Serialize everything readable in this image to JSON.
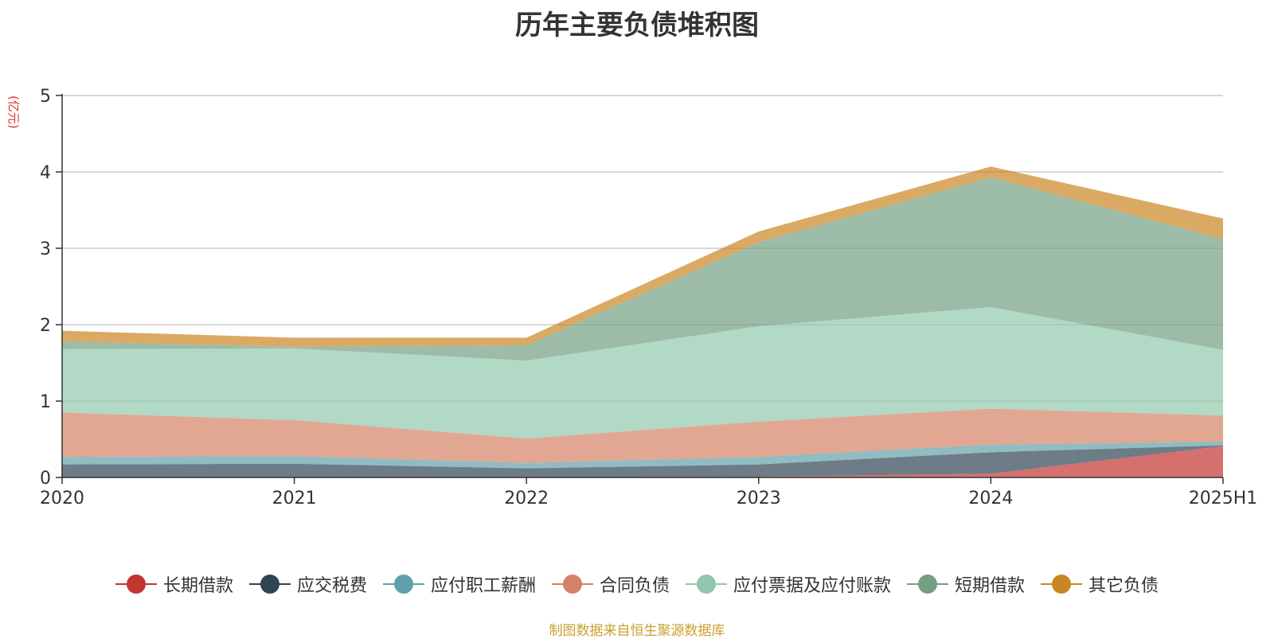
{
  "chart_data": {
    "type": "area",
    "stacked": true,
    "title": "历年主要负债堆积图",
    "ylabel": "(亿元)",
    "xlabel": "",
    "categories": [
      "2020",
      "2021",
      "2022",
      "2023",
      "2024",
      "2025H1"
    ],
    "ylim": [
      0,
      5
    ],
    "yticks": [
      0,
      1,
      2,
      3,
      4,
      5
    ],
    "grid": true,
    "legend_position": "bottom",
    "series": [
      {
        "name": "长期借款",
        "color": "#c23531",
        "values": [
          0,
          0,
          0,
          0.01,
          0.05,
          0.41
        ]
      },
      {
        "name": "应交税费",
        "color": "#2f4554",
        "values": [
          0.17,
          0.18,
          0.12,
          0.16,
          0.28,
          0.01
        ]
      },
      {
        "name": "应付职工薪酬",
        "color": "#61a0a8",
        "values": [
          0.1,
          0.1,
          0.07,
          0.1,
          0.1,
          0.05
        ]
      },
      {
        "name": "合同负债",
        "color": "#d48265",
        "values": [
          0.58,
          0.47,
          0.32,
          0.46,
          0.47,
          0.34
        ]
      },
      {
        "name": "应付票据及应付账款",
        "color": "#91c7ae",
        "values": [
          0.83,
          0.94,
          1.02,
          1.25,
          1.33,
          0.86
        ]
      },
      {
        "name": "短期借款",
        "color": "#749f83",
        "values": [
          0.1,
          0.02,
          0.2,
          1.1,
          1.7,
          1.45
        ]
      },
      {
        "name": "其它负债",
        "color": "#ca8622",
        "values": [
          0.14,
          0.12,
          0.1,
          0.14,
          0.14,
          0.27
        ]
      }
    ]
  },
  "source_note": "制图数据来自恒生聚源数据库"
}
